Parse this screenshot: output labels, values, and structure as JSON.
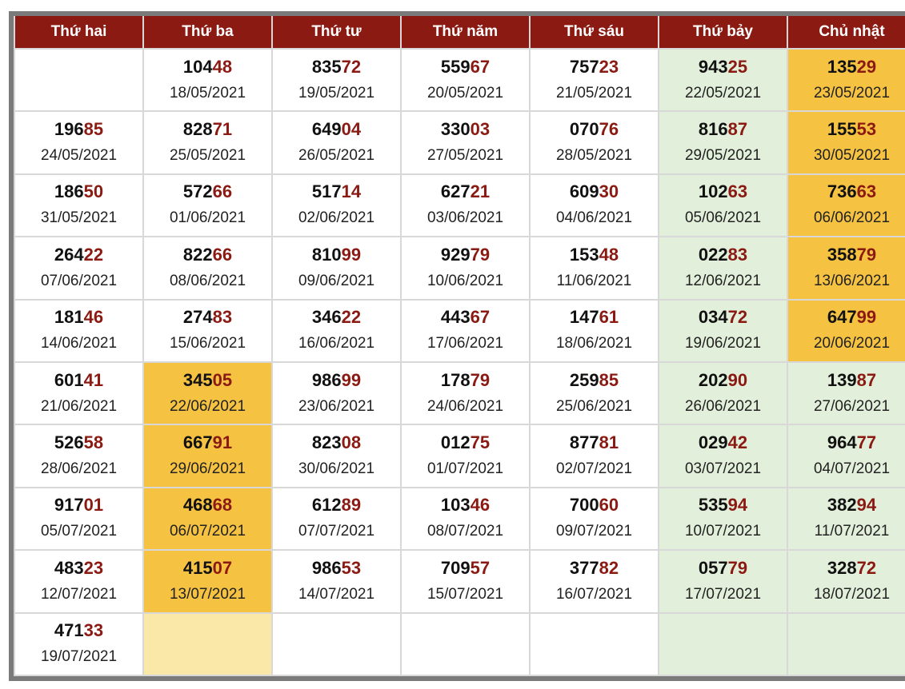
{
  "colors": {
    "header": "#8b1a13",
    "tail": "#8b1a13",
    "weekend_green": "#e2efda",
    "highlight_orange": "#f5c242",
    "highlight_yellow": "#fae8a8"
  },
  "headers": [
    "Thứ hai",
    "Thứ ba",
    "Thứ tư",
    "Thứ năm",
    "Thứ sáu",
    "Thứ bảy",
    "Chủ nhật"
  ],
  "rows": [
    [
      null,
      {
        "num": "10448",
        "date": "18/05/2021"
      },
      {
        "num": "83572",
        "date": "19/05/2021"
      },
      {
        "num": "55967",
        "date": "20/05/2021"
      },
      {
        "num": "75723",
        "date": "21/05/2021"
      },
      {
        "num": "94325",
        "date": "22/05/2021"
      },
      {
        "num": "13529",
        "date": "23/05/2021",
        "hl": "orange"
      }
    ],
    [
      {
        "num": "19685",
        "date": "24/05/2021"
      },
      {
        "num": "82871",
        "date": "25/05/2021"
      },
      {
        "num": "64904",
        "date": "26/05/2021"
      },
      {
        "num": "33003",
        "date": "27/05/2021"
      },
      {
        "num": "07076",
        "date": "28/05/2021"
      },
      {
        "num": "81687",
        "date": "29/05/2021"
      },
      {
        "num": "15553",
        "date": "30/05/2021",
        "hl": "orange"
      }
    ],
    [
      {
        "num": "18650",
        "date": "31/05/2021"
      },
      {
        "num": "57266",
        "date": "01/06/2021"
      },
      {
        "num": "51714",
        "date": "02/06/2021"
      },
      {
        "num": "62721",
        "date": "03/06/2021"
      },
      {
        "num": "60930",
        "date": "04/06/2021"
      },
      {
        "num": "10263",
        "date": "05/06/2021"
      },
      {
        "num": "73663",
        "date": "06/06/2021",
        "hl": "orange"
      }
    ],
    [
      {
        "num": "26422",
        "date": "07/06/2021"
      },
      {
        "num": "82266",
        "date": "08/06/2021"
      },
      {
        "num": "81099",
        "date": "09/06/2021"
      },
      {
        "num": "92979",
        "date": "10/06/2021"
      },
      {
        "num": "15348",
        "date": "11/06/2021"
      },
      {
        "num": "02283",
        "date": "12/06/2021"
      },
      {
        "num": "35879",
        "date": "13/06/2021",
        "hl": "orange"
      }
    ],
    [
      {
        "num": "18146",
        "date": "14/06/2021"
      },
      {
        "num": "27483",
        "date": "15/06/2021"
      },
      {
        "num": "34622",
        "date": "16/06/2021"
      },
      {
        "num": "44367",
        "date": "17/06/2021"
      },
      {
        "num": "14761",
        "date": "18/06/2021"
      },
      {
        "num": "03472",
        "date": "19/06/2021"
      },
      {
        "num": "64799",
        "date": "20/06/2021",
        "hl": "orange"
      }
    ],
    [
      {
        "num": "60141",
        "date": "21/06/2021"
      },
      {
        "num": "34505",
        "date": "22/06/2021",
        "hl": "orange"
      },
      {
        "num": "98699",
        "date": "23/06/2021"
      },
      {
        "num": "17879",
        "date": "24/06/2021"
      },
      {
        "num": "25985",
        "date": "25/06/2021"
      },
      {
        "num": "20290",
        "date": "26/06/2021"
      },
      {
        "num": "13987",
        "date": "27/06/2021"
      }
    ],
    [
      {
        "num": "52658",
        "date": "28/06/2021"
      },
      {
        "num": "66791",
        "date": "29/06/2021",
        "hl": "orange"
      },
      {
        "num": "82308",
        "date": "30/06/2021"
      },
      {
        "num": "01275",
        "date": "01/07/2021"
      },
      {
        "num": "87781",
        "date": "02/07/2021"
      },
      {
        "num": "02942",
        "date": "03/07/2021"
      },
      {
        "num": "96477",
        "date": "04/07/2021"
      }
    ],
    [
      {
        "num": "91701",
        "date": "05/07/2021"
      },
      {
        "num": "46868",
        "date": "06/07/2021",
        "hl": "orange"
      },
      {
        "num": "61289",
        "date": "07/07/2021"
      },
      {
        "num": "10346",
        "date": "08/07/2021"
      },
      {
        "num": "70060",
        "date": "09/07/2021"
      },
      {
        "num": "53594",
        "date": "10/07/2021"
      },
      {
        "num": "38294",
        "date": "11/07/2021"
      }
    ],
    [
      {
        "num": "48323",
        "date": "12/07/2021"
      },
      {
        "num": "41507",
        "date": "13/07/2021",
        "hl": "orange"
      },
      {
        "num": "98653",
        "date": "14/07/2021"
      },
      {
        "num": "70957",
        "date": "15/07/2021"
      },
      {
        "num": "37782",
        "date": "16/07/2021"
      },
      {
        "num": "05779",
        "date": "17/07/2021"
      },
      {
        "num": "32872",
        "date": "18/07/2021"
      }
    ],
    [
      {
        "num": "47133",
        "date": "19/07/2021"
      },
      {
        "hl": "yellow"
      },
      null,
      null,
      null,
      null,
      null
    ]
  ]
}
